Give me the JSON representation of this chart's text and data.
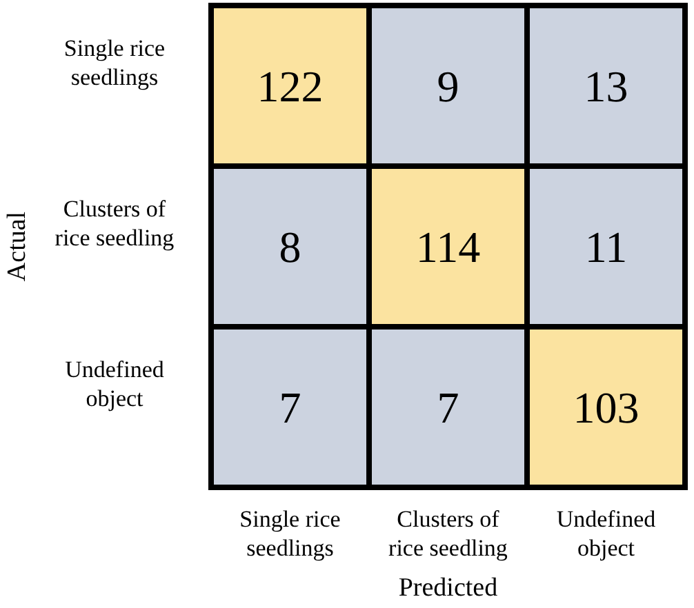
{
  "chart_data": {
    "type": "heatmap",
    "xlabel": "Predicted",
    "ylabel": "Actual",
    "categories": [
      "Single rice seedlings",
      "Clusters of rice seedling",
      "Undefined object"
    ],
    "y_categories": [
      "Single rice seedlings",
      "Clusters of rice seedling",
      "Undefined object"
    ],
    "cells": [
      [
        122,
        9,
        13
      ],
      [
        8,
        114,
        11
      ],
      [
        7,
        7,
        103
      ]
    ],
    "colors": [
      "#ccd3e0",
      "#fbe3a0"
    ],
    "data_labels": true
  }
}
